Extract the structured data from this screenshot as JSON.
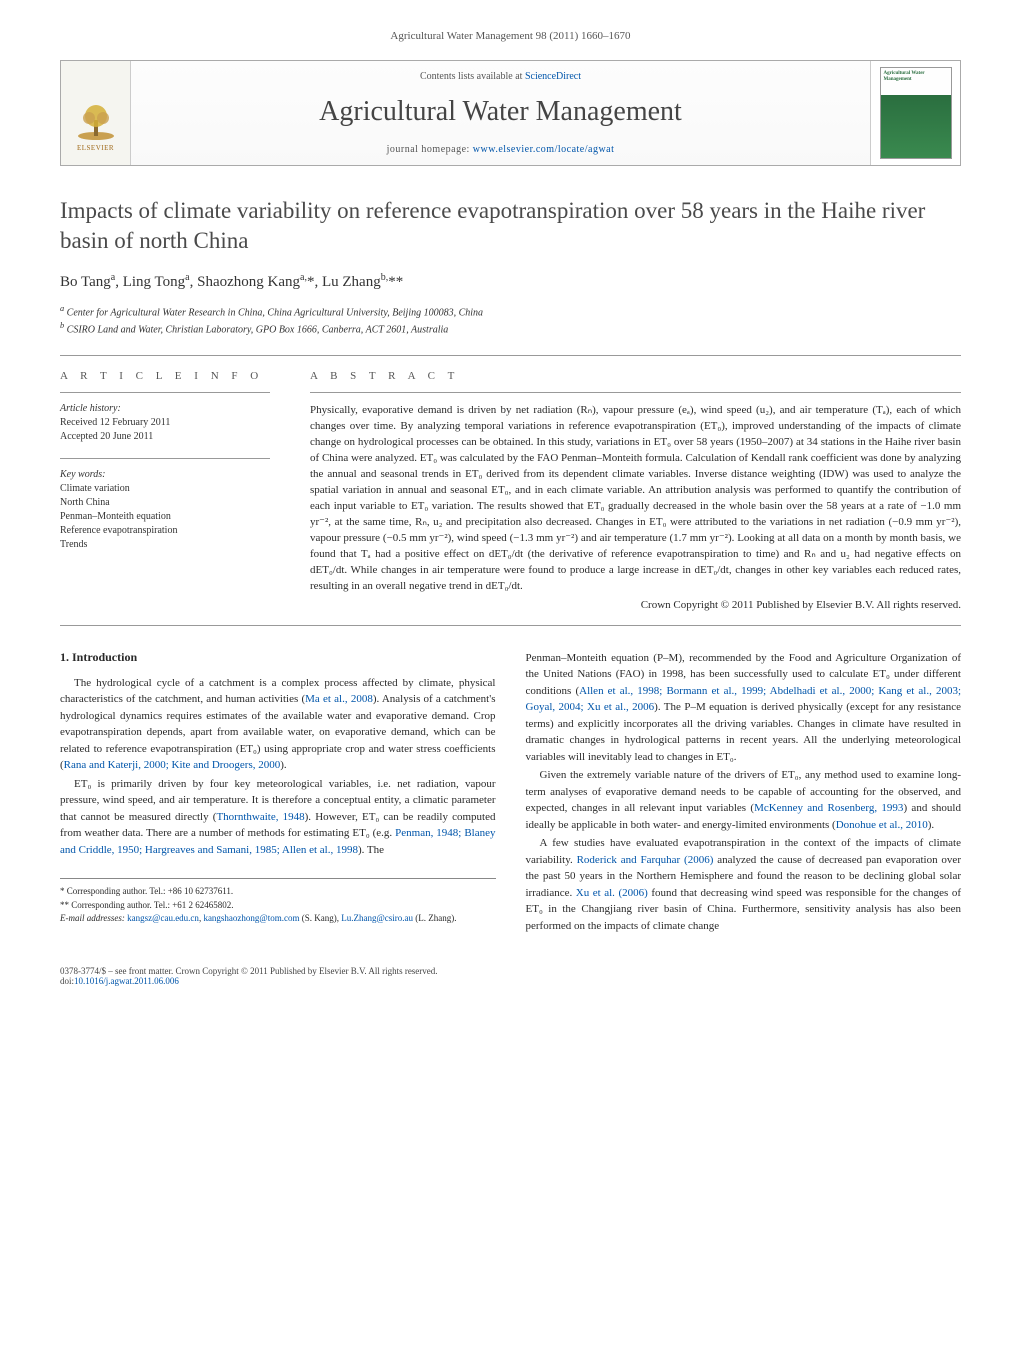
{
  "runningHead": "Agricultural Water Management 98 (2011) 1660–1670",
  "banner": {
    "contentsPrefix": "Contents lists available at ",
    "contentsLink": "ScienceDirect",
    "journalName": "Agricultural Water Management",
    "homepagePrefix": "journal homepage: ",
    "homepageLink": "www.elsevier.com/locate/agwat",
    "elsevier": "ELSEVIER",
    "coverLabel": "Agricultural Water Management"
  },
  "title": "Impacts of climate variability on reference evapotranspiration over 58 years in the Haihe river basin of north China",
  "authorsHtml": "Bo Tang<sup>a</sup>, Ling Tong<sup>a</sup>, Shaozhong Kang<sup>a,</sup>*, Lu Zhang<sup>b,</sup>**",
  "affiliations": {
    "a": "Center for Agricultural Water Research in China, China Agricultural University, Beijing 100083, China",
    "b": "CSIRO Land and Water, Christian Laboratory, GPO Box 1666, Canberra, ACT 2601, Australia"
  },
  "infoLabel": "A R T I C L E   I N F O",
  "absLabel": "A B S T R A C T",
  "history": {
    "head": "Article history:",
    "received": "Received 12 February 2011",
    "accepted": "Accepted 20 June 2011"
  },
  "keywords": {
    "head": "Key words:",
    "items": [
      "Climate variation",
      "North China",
      "Penman–Monteith equation",
      "Reference evapotranspiration",
      "Trends"
    ]
  },
  "abstract": "Physically, evaporative demand is driven by net radiation (Rₙ), vapour pressure (eₐ), wind speed (u₂), and air temperature (Tₐ), each of which changes over time. By analyzing temporal variations in reference evapotranspiration (ET₀), improved understanding of the impacts of climate change on hydrological processes can be obtained. In this study, variations in ET₀ over 58 years (1950–2007) at 34 stations in the Haihe river basin of China were analyzed. ET₀ was calculated by the FAO Penman–Monteith formula. Calculation of Kendall rank coefficient was done by analyzing the annual and seasonal trends in ET₀ derived from its dependent climate variables. Inverse distance weighting (IDW) was used to analyze the spatial variation in annual and seasonal ET₀, and in each climate variable. An attribution analysis was performed to quantify the contribution of each input variable to ET₀ variation. The results showed that ET₀ gradually decreased in the whole basin over the 58 years at a rate of −1.0 mm yr⁻², at the same time, Rₙ, u₂ and precipitation also decreased. Changes in ET₀ were attributed to the variations in net radiation (−0.9 mm yr⁻²), vapour pressure (−0.5 mm yr⁻²), wind speed (−1.3 mm yr⁻²) and air temperature (1.7 mm yr⁻²). Looking at all data on a month by month basis, we found that Tₐ had a positive effect on dET₀/dt (the derivative of reference evapotranspiration to time) and Rₙ and u₂ had negative effects on dET₀/dt. While changes in air temperature were found to produce a large increase in dET₀/dt, changes in other key variables each reduced rates, resulting in an overall negative trend in dET₀/dt.",
  "copyright": "Crown Copyright © 2011 Published by Elsevier B.V. All rights reserved.",
  "section1": "1. Introduction",
  "leftCol": {
    "p1a": "The hydrological cycle of a catchment is a complex process affected by climate, physical characteristics of the catchment, and human activities (",
    "p1ref1": "Ma et al., 2008",
    "p1b": "). Analysis of a catchment's hydrological dynamics requires estimates of the available water and evaporative demand. Crop evapotranspiration depends, apart from available water, on evaporative demand, which can be related to reference evapotranspiration (ET₀) using appropriate crop and water stress coefficients (",
    "p1ref2": "Rana and Katerji, 2000; Kite and Droogers, 2000",
    "p1c": ").",
    "p2a": "ET₀ is primarily driven by four key meteorological variables, i.e. net radiation, vapour pressure, wind speed, and air temperature. It is therefore a conceptual entity, a climatic parameter that cannot be measured directly (",
    "p2ref1": "Thornthwaite, 1948",
    "p2b": "). However, ET₀ can be readily computed from weather data. There are a number of methods for estimating ET₀ (e.g. ",
    "p2ref2": "Penman, 1948; Blaney and Criddle, 1950; Hargreaves and Samani, 1985; Allen et al., 1998",
    "p2c": "). The"
  },
  "rightCol": {
    "p1a": "Penman–Monteith equation (P–M), recommended by the Food and Agriculture Organization of the United Nations (FAO) in 1998, has been successfully used to calculate ET₀ under different conditions (",
    "p1ref1": "Allen et al., 1998; Bormann et al., 1999; Abdelhadi et al., 2000; Kang et al., 2003; Goyal, 2004; Xu et al., 2006",
    "p1b": "). The P–M equation is derived physically (except for any resistance terms) and explicitly incorporates all the driving variables. Changes in climate have resulted in dramatic changes in hydrological patterns in recent years. All the underlying meteorological variables will inevitably lead to changes in ET₀.",
    "p2a": "Given the extremely variable nature of the drivers of ET₀, any method used to examine long-term analyses of evaporative demand needs to be capable of accounting for the observed, and expected, changes in all relevant input variables (",
    "p2ref1": "McKenney and Rosenberg, 1993",
    "p2b": ") and should ideally be applicable in both water- and energy-limited environments (",
    "p2ref2": "Donohue et al., 2010",
    "p2c": ").",
    "p3a": "A few studies have evaluated evapotranspiration in the context of the impacts of climate variability. ",
    "p3ref1": "Roderick and Farquhar (2006)",
    "p3b": " analyzed the cause of decreased pan evaporation over the past 50 years in the Northern Hemisphere and found the reason to be declining global solar irradiance. ",
    "p3ref2": "Xu et al. (2006)",
    "p3c": " found that decreasing wind speed was responsible for the changes of ET₀ in the Changjiang river basin of China. Furthermore, sensitivity analysis has also been performed on the impacts of climate change"
  },
  "footnotes": {
    "c1": "* Corresponding author. Tel.: +86 10 62737611.",
    "c2": "** Corresponding author. Tel.: +61 2 62465802.",
    "emLabel": "E-mail addresses: ",
    "em1": "kangsz@cau.edu.cn",
    "em1sep": ", ",
    "em2": "kangshaozhong@tom.com",
    "em1name": " (S. Kang), ",
    "em3": "Lu.Zhang@csiro.au",
    "em3name": " (L. Zhang)."
  },
  "footer": {
    "line1": "0378-3774/$ – see front matter. Crown Copyright © 2011 Published by Elsevier B.V. All rights reserved.",
    "doiLabel": "doi:",
    "doi": "10.1016/j.agwat.2011.06.006"
  }
}
